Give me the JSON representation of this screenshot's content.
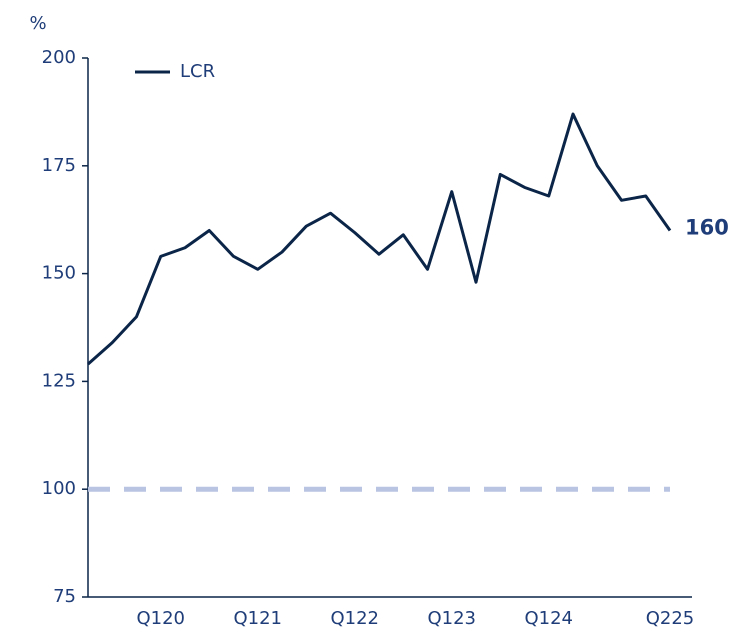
{
  "chart_data": {
    "type": "line",
    "y_label": "%",
    "categories": [
      null,
      null,
      null,
      "Q120",
      null,
      null,
      null,
      "Q121",
      null,
      null,
      null,
      "Q122",
      null,
      null,
      null,
      "Q123",
      null,
      null,
      null,
      "Q124",
      null,
      null,
      null,
      null,
      "Q225"
    ],
    "series": [
      {
        "name": "LCR",
        "color": "#0b2548",
        "values": [
          129,
          134,
          140,
          154,
          156,
          160,
          154,
          151,
          155,
          161,
          164,
          159.5,
          154.5,
          159,
          151,
          169,
          148,
          173,
          170,
          168,
          187,
          175,
          167,
          168,
          160
        ],
        "value_labels": [
          null,
          null,
          null,
          null,
          null,
          null,
          null,
          null,
          null,
          null,
          null,
          null,
          null,
          null,
          null,
          null,
          null,
          null,
          null,
          null,
          null,
          null,
          null,
          null,
          "160"
        ]
      }
    ],
    "reference_line": {
      "value": 100,
      "color": "#b8c4e2"
    },
    "ylim": [
      75,
      200
    ],
    "yticks": [
      75,
      100,
      125,
      150,
      175,
      200
    ],
    "legend": "top-left"
  }
}
